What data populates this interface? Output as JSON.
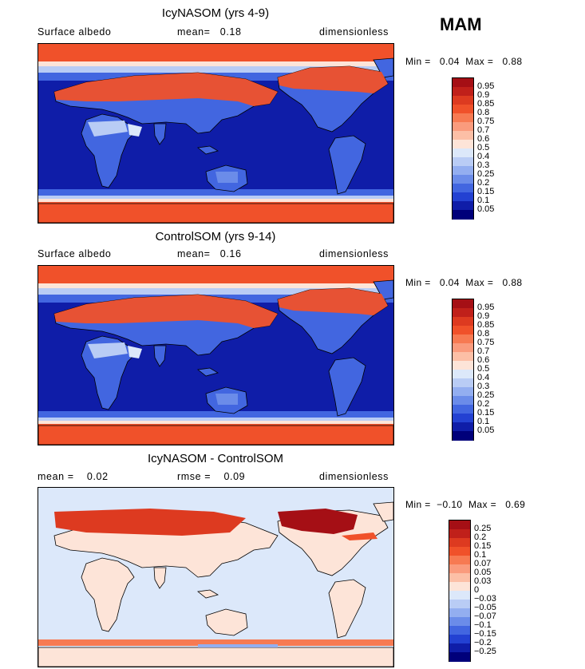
{
  "season": "MAM",
  "panels": [
    {
      "title": "IcyNASOM (yrs 4-9)",
      "left_text": "Surface albedo",
      "mid_text": "mean=   0.18",
      "right_text": "dimensionless",
      "min_max": "Min =   0.04  Max =   0.88",
      "type": "abs"
    },
    {
      "title": "ControlSOM (yrs 9-14)",
      "left_text": "Surface albedo",
      "mid_text": "mean=   0.16",
      "right_text": "dimensionless",
      "min_max": "Min =   0.04  Max =   0.88",
      "type": "abs"
    },
    {
      "title": "IcyNASOM - ControlSOM",
      "left_text": "mean =    0.02",
      "mid_text": "rmse =    0.09",
      "right_text": "dimensionless",
      "min_max": "Min =  −0.10  Max =   0.69",
      "type": "diff"
    }
  ],
  "chart_data": [
    {
      "type": "heatmap",
      "title": "IcyNASOM (yrs 4-9)",
      "variable": "Surface albedo",
      "units": "dimensionless",
      "mean": 0.18,
      "min": 0.04,
      "max": 0.88,
      "colorbar": {
        "labels": [
          "0.95",
          "0.9",
          "0.85",
          "0.8",
          "0.75",
          "0.7",
          "0.6",
          "0.5",
          "0.4",
          "0.3",
          "0.25",
          "0.2",
          "0.15",
          "0.1",
          "0.05"
        ],
        "colors": [
          "#a50f15",
          "#c0201a",
          "#dd3a20",
          "#f0512a",
          "#f77a52",
          "#fa9b7d",
          "#fcbfa6",
          "#fde4d8",
          "#dce8fa",
          "#b9ccf5",
          "#93aef0",
          "#6b8ce9",
          "#4266e0",
          "#2341d2",
          "#0f1da8",
          "#00007a"
        ]
      }
    },
    {
      "type": "heatmap",
      "title": "ControlSOM (yrs 9-14)",
      "variable": "Surface albedo",
      "units": "dimensionless",
      "mean": 0.16,
      "min": 0.04,
      "max": 0.88,
      "colorbar": {
        "labels": [
          "0.95",
          "0.9",
          "0.85",
          "0.8",
          "0.75",
          "0.7",
          "0.6",
          "0.5",
          "0.4",
          "0.3",
          "0.25",
          "0.2",
          "0.15",
          "0.1",
          "0.05"
        ],
        "colors": [
          "#a50f15",
          "#c0201a",
          "#dd3a20",
          "#f0512a",
          "#f77a52",
          "#fa9b7d",
          "#fcbfa6",
          "#fde4d8",
          "#dce8fa",
          "#b9ccf5",
          "#93aef0",
          "#6b8ce9",
          "#4266e0",
          "#2341d2",
          "#0f1da8",
          "#00007a"
        ]
      }
    },
    {
      "type": "heatmap",
      "title": "IcyNASOM - ControlSOM",
      "units": "dimensionless",
      "mean": 0.02,
      "rmse": 0.09,
      "min": -0.1,
      "max": 0.69,
      "colorbar": {
        "labels": [
          "0.25",
          "0.2",
          "0.15",
          "0.1",
          "0.07",
          "0.05",
          "0.03",
          "0",
          "−0.03",
          "−0.05",
          "−0.07",
          "−0.1",
          "−0.15",
          "−0.2",
          "−0.25"
        ],
        "colors": [
          "#a50f15",
          "#c0201a",
          "#dd3a20",
          "#f0512a",
          "#f77a52",
          "#fa9b7d",
          "#fcbfa6",
          "#fde4d8",
          "#dce8fa",
          "#b9ccf5",
          "#93aef0",
          "#6b8ce9",
          "#4266e0",
          "#2341d2",
          "#0f1da8",
          "#00007a"
        ]
      }
    }
  ]
}
